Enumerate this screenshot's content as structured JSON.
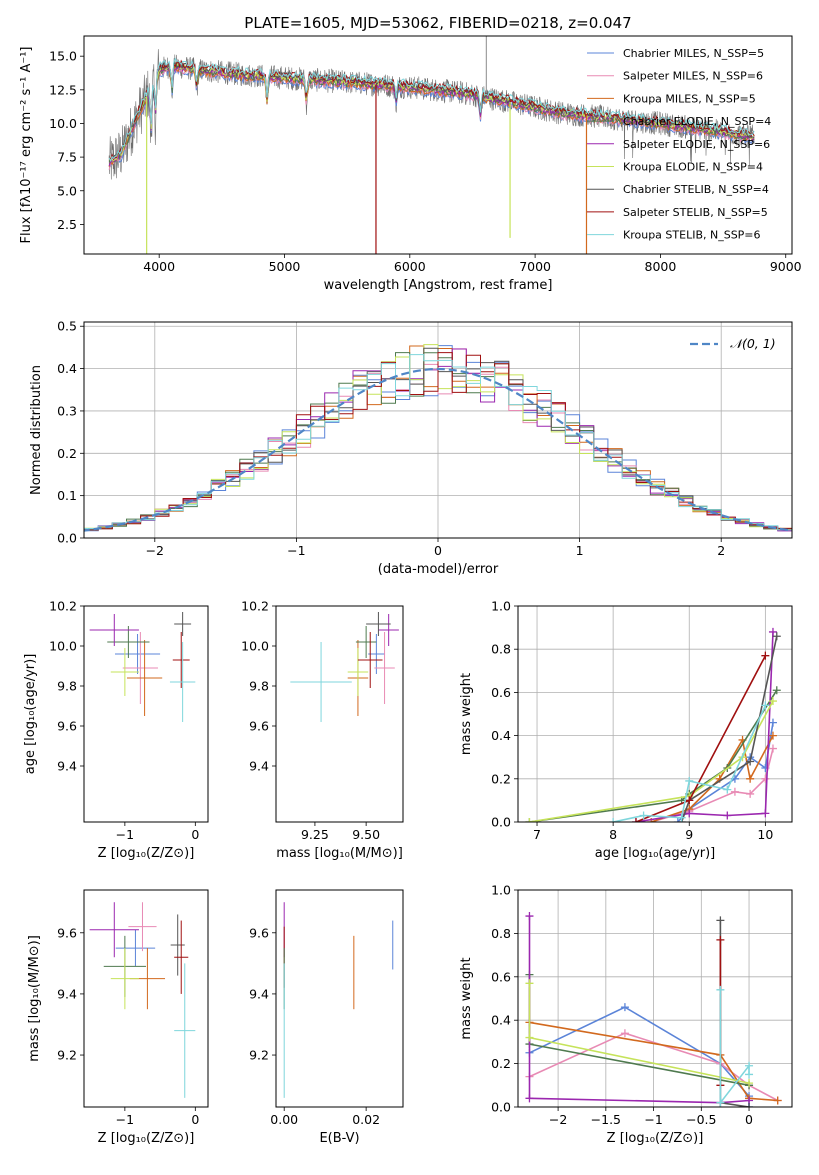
{
  "colors": {
    "chabrier_miles": "#5b84d8",
    "salpeter_miles": "#e88ab4",
    "kroupa_miles": "#d2691e",
    "chabrier_elodie": "#4f7a4f",
    "salpeter_elodie": "#9b27af",
    "kroupa_elodie": "#c6e35a",
    "chabrier_stelib": "#555555",
    "salpeter_stelib": "#a01010",
    "kroupa_stelib": "#7fd6dc",
    "normal_curve": "#4f86c6",
    "grid": "#b0b0b0"
  },
  "chart_data": [
    {
      "id": "spectrum",
      "type": "line",
      "title": "PLATE=1605, MJD=53062, FIBERID=0218, z=0.047",
      "xlabel": "wavelength [Angstrom, rest frame]",
      "ylabel": "Flux [fλ10⁻¹⁷ erg cm⁻² s⁻¹ A⁻¹]",
      "xlim": [
        3400,
        9050
      ],
      "ylim": [
        0.3,
        16.5
      ],
      "xticks": [
        4000,
        5000,
        6000,
        7000,
        8000,
        9000
      ],
      "yticks": [
        2.5,
        5.0,
        7.5,
        10.0,
        12.5,
        15.0
      ],
      "grid": false,
      "legend_position": "top-right",
      "legend": [
        "Chabrier MILES, N_SSP=5",
        "Salpeter MILES, N_SSP=6",
        "Kroupa MILES, N_SSP=5",
        "Chabrier ELODIE, N_SSP=4",
        "Salpeter ELODIE, N_SSP=6",
        "Kroupa ELODIE, N_SSP=4",
        "Chabrier STELIB, N_SSP=4",
        "Salpeter STELIB, N_SSP=5",
        "Kroupa STELIB, N_SSP=6"
      ],
      "continuum": {
        "x": [
          3600,
          3700,
          3800,
          3950,
          4000,
          4100,
          4300,
          4500,
          4700,
          5000,
          5300,
          5600,
          6000,
          6400,
          6800,
          7200,
          7500,
          8000,
          8400,
          8750
        ],
        "y": [
          7.0,
          7.8,
          10.0,
          13.0,
          14.0,
          14.3,
          14.0,
          13.8,
          13.6,
          13.4,
          13.2,
          13.0,
          12.7,
          12.3,
          11.6,
          10.8,
          10.5,
          10.0,
          9.5,
          9.0
        ]
      },
      "model_dips": [
        {
          "series": "Salpeter STELIB",
          "x": 5730,
          "y_min": 0.3
        },
        {
          "series": "Kroupa MILES",
          "x": 7410,
          "y_min": 0.3
        },
        {
          "series": "Kroupa ELODIE",
          "x": 3900,
          "y_min": 0.3
        },
        {
          "series": "Kroupa ELODIE",
          "x": 6800,
          "y_min": 1.5
        }
      ]
    },
    {
      "id": "residuals",
      "type": "histogram",
      "xlabel": "(data-model)/error",
      "ylabel": "Normed distribution",
      "xlim": [
        -2.5,
        2.5
      ],
      "ylim": [
        0,
        0.51
      ],
      "xticks": [
        -2,
        -1,
        0,
        1,
        2
      ],
      "yticks": [
        0.0,
        0.1,
        0.2,
        0.3,
        0.4,
        0.5
      ],
      "grid": true,
      "legend_position": "top-right",
      "legend": [
        "𝒩(0, 1)"
      ],
      "bin_width": 0.1,
      "curve": "normal pdf, mean 0, sd 1"
    },
    {
      "id": "age-vs-Z",
      "type": "scatter",
      "xlabel": "Z [log₁₀(Z/Z⊙)]",
      "ylabel": "age  [log₁₀(age/yr)]",
      "xlim": [
        -1.58,
        0.18
      ],
      "ylim": [
        9.12,
        10.2
      ],
      "xticks": [
        -1,
        0
      ],
      "yticks": [
        9.4,
        9.6,
        9.8,
        10.0,
        10.2
      ],
      "grid": false,
      "points": [
        {
          "series": "Chabrier MILES",
          "x": -0.82,
          "y": 9.96,
          "xerr": 0.32,
          "yerr": 0.1
        },
        {
          "series": "Salpeter MILES",
          "x": -0.78,
          "y": 9.89,
          "xerr": 0.25,
          "yerr": 0.18
        },
        {
          "series": "Kroupa MILES",
          "x": -0.72,
          "y": 9.84,
          "xerr": 0.25,
          "yerr": 0.19
        },
        {
          "series": "Chabrier ELODIE",
          "x": -0.95,
          "y": 10.02,
          "xerr": 0.3,
          "yerr": 0.08
        },
        {
          "series": "Salpeter ELODIE",
          "x": -1.15,
          "y": 10.08,
          "xerr": 0.35,
          "yerr": 0.08
        },
        {
          "series": "Kroupa ELODIE",
          "x": -1.0,
          "y": 9.87,
          "xerr": 0.2,
          "yerr": 0.12
        },
        {
          "series": "Chabrier STELIB",
          "x": -0.18,
          "y": 10.11,
          "xerr": 0.12,
          "yerr": 0.06
        },
        {
          "series": "Salpeter STELIB",
          "x": -0.2,
          "y": 9.93,
          "xerr": 0.12,
          "yerr": 0.14
        },
        {
          "series": "Kroupa STELIB",
          "x": -0.18,
          "y": 9.82,
          "xerr": 0.18,
          "yerr": 0.2
        }
      ]
    },
    {
      "id": "age-vs-mass",
      "type": "scatter",
      "xlabel": "mass [log₁₀(M/M⊙)]",
      "xlim": [
        9.06,
        9.68
      ],
      "ylim": [
        9.12,
        10.2
      ],
      "xticks": [
        9.25,
        9.5
      ],
      "xticklabels": [
        "9.25",
        "9.50"
      ],
      "yticks": [
        9.4,
        9.6,
        9.8,
        10.0,
        10.2
      ],
      "grid": false,
      "points": [
        {
          "series": "Chabrier MILES",
          "x": 9.55,
          "y": 9.96,
          "xerr": 0.04,
          "yerr": 0.1
        },
        {
          "series": "Salpeter MILES",
          "x": 9.59,
          "y": 9.89,
          "xerr": 0.05,
          "yerr": 0.18
        },
        {
          "series": "Kroupa MILES",
          "x": 9.46,
          "y": 9.84,
          "xerr": 0.05,
          "yerr": 0.19
        },
        {
          "series": "Chabrier ELODIE",
          "x": 9.5,
          "y": 10.02,
          "xerr": 0.05,
          "yerr": 0.08
        },
        {
          "series": "Salpeter ELODIE",
          "x": 9.61,
          "y": 10.08,
          "xerr": 0.05,
          "yerr": 0.08
        },
        {
          "series": "Kroupa ELODIE",
          "x": 9.46,
          "y": 9.87,
          "xerr": 0.05,
          "yerr": 0.12
        },
        {
          "series": "Chabrier STELIB",
          "x": 9.56,
          "y": 10.11,
          "xerr": 0.06,
          "yerr": 0.06
        },
        {
          "series": "Salpeter STELIB",
          "x": 9.52,
          "y": 9.93,
          "xerr": 0.06,
          "yerr": 0.14
        },
        {
          "series": "Kroupa STELIB",
          "x": 9.28,
          "y": 9.82,
          "xerr": 0.15,
          "yerr": 0.2
        }
      ]
    },
    {
      "id": "massweight-vs-age",
      "type": "line",
      "xlabel": "age  [log₁₀(age/yr)]",
      "ylabel": "mass weight",
      "xlim": [
        6.75,
        10.35
      ],
      "ylim": [
        0,
        1.0
      ],
      "xticks": [
        7,
        8,
        9,
        10
      ],
      "yticks": [
        0.0,
        0.2,
        0.4,
        0.6,
        0.8,
        1.0
      ],
      "grid": true,
      "series": [
        {
          "series": "Chabrier MILES",
          "x": [
            8.85,
            9.0,
            9.6,
            9.8,
            10.0,
            10.1
          ],
          "y": [
            0.0,
            0.06,
            0.2,
            0.3,
            0.25,
            0.46
          ]
        },
        {
          "series": "Salpeter MILES",
          "x": [
            8.5,
            9.0,
            9.6,
            9.8,
            10.0,
            10.1
          ],
          "y": [
            0.0,
            0.05,
            0.14,
            0.13,
            0.2,
            0.34
          ]
        },
        {
          "series": "Kroupa MILES",
          "x": [
            8.5,
            9.0,
            9.4,
            9.7,
            9.8,
            10.1
          ],
          "y": [
            0.0,
            0.06,
            0.2,
            0.38,
            0.2,
            0.4
          ]
        },
        {
          "series": "Chabrier ELODIE",
          "x": [
            6.9,
            8.9,
            9.0,
            9.5,
            10.15
          ],
          "y": [
            0.0,
            0.1,
            0.13,
            0.25,
            0.61
          ]
        },
        {
          "series": "Salpeter ELODIE",
          "x": [
            8.3,
            9.0,
            9.5,
            10.0,
            10.1
          ],
          "y": [
            0.0,
            0.04,
            0.03,
            0.04,
            0.88
          ]
        },
        {
          "series": "Kroupa ELODIE",
          "x": [
            6.9,
            9.0,
            9.7,
            10.1
          ],
          "y": [
            0.0,
            0.12,
            0.3,
            0.56
          ]
        },
        {
          "series": "Chabrier STELIB",
          "x": [
            8.9,
            9.0,
            9.8,
            10.15
          ],
          "y": [
            0.0,
            0.1,
            0.28,
            0.86
          ]
        },
        {
          "series": "Salpeter STELIB",
          "x": [
            8.3,
            9.0,
            10.0
          ],
          "y": [
            0.0,
            0.1,
            0.77
          ]
        },
        {
          "series": "Kroupa STELIB",
          "x": [
            8.0,
            8.4,
            8.9,
            9.0,
            9.5,
            10.0
          ],
          "y": [
            0.0,
            0.03,
            0.02,
            0.19,
            0.15,
            0.54
          ]
        }
      ]
    },
    {
      "id": "mass-vs-Z",
      "type": "scatter",
      "xlabel": "Z [log₁₀(Z/Z⊙)]",
      "ylabel": "mass [log₁₀(M/M⊙)]",
      "xlim": [
        -1.58,
        0.18
      ],
      "ylim": [
        9.03,
        9.74
      ],
      "xticks": [
        -1,
        0
      ],
      "yticks": [
        9.2,
        9.4,
        9.6
      ],
      "grid": false,
      "points": [
        {
          "series": "Chabrier MILES",
          "x": -0.85,
          "y": 9.55,
          "xerr": 0.28,
          "yerr": 0.06
        },
        {
          "series": "Salpeter MILES",
          "x": -0.75,
          "y": 9.62,
          "xerr": 0.2,
          "yerr": 0.08
        },
        {
          "series": "Kroupa MILES",
          "x": -0.68,
          "y": 9.45,
          "xerr": 0.25,
          "yerr": 0.1
        },
        {
          "series": "Chabrier ELODIE",
          "x": -1.0,
          "y": 9.49,
          "xerr": 0.3,
          "yerr": 0.1
        },
        {
          "series": "Salpeter ELODIE",
          "x": -1.15,
          "y": 9.61,
          "xerr": 0.35,
          "yerr": 0.09
        },
        {
          "series": "Kroupa ELODIE",
          "x": -1.0,
          "y": 9.45,
          "xerr": 0.2,
          "yerr": 0.1
        },
        {
          "series": "Chabrier STELIB",
          "x": -0.25,
          "y": 9.56,
          "xerr": 0.1,
          "yerr": 0.1
        },
        {
          "series": "Salpeter STELIB",
          "x": -0.2,
          "y": 9.52,
          "xerr": 0.1,
          "yerr": 0.12
        },
        {
          "series": "Kroupa STELIB",
          "x": -0.15,
          "y": 9.28,
          "xerr": 0.15,
          "yerr": 0.22
        }
      ]
    },
    {
      "id": "mass-vs-ebv",
      "type": "scatter",
      "xlabel": "E(B-V)",
      "xlim": [
        -0.002,
        0.029
      ],
      "ylim": [
        9.03,
        9.74
      ],
      "xticks": [
        0.0,
        0.02
      ],
      "xticklabels": [
        "0.00",
        "0.02"
      ],
      "yticks": [
        9.2,
        9.4,
        9.6
      ],
      "grid": false,
      "points": [
        {
          "series": "Chabrier MILES",
          "x": 0.0265,
          "y": 9.56,
          "xerr": 0,
          "yerr": 0.08
        },
        {
          "series": "Kroupa MILES",
          "x": 0.017,
          "y": 9.47,
          "xerr": 0,
          "yerr": 0.12
        },
        {
          "series": "Salpeter ELODIE",
          "x": 0.0,
          "y": 9.61,
          "xerr": 0,
          "yerr": 0.09
        },
        {
          "series": "Salpeter STELIB",
          "x": 0.0,
          "y": 9.52,
          "xerr": 0,
          "yerr": 0.1
        },
        {
          "series": "Chabrier ELODIE",
          "x": 0.0,
          "y": 9.45,
          "xerr": 0,
          "yerr": 0.1
        },
        {
          "series": "Kroupa STELIB",
          "x": 0.0,
          "y": 9.28,
          "xerr": 0,
          "yerr": 0.22
        }
      ]
    },
    {
      "id": "massweight-vs-Z",
      "type": "line",
      "xlabel": "Z [log₁₀(Z/Z⊙)]",
      "ylabel": "mass weight",
      "xlim": [
        -2.42,
        0.45
      ],
      "ylim": [
        0,
        1.0
      ],
      "xticks": [
        -2.0,
        -1.5,
        -1.0,
        -0.5,
        0.0
      ],
      "yticks": [
        0.0,
        0.2,
        0.4,
        0.6,
        0.8,
        1.0
      ],
      "grid": true,
      "series": [
        {
          "series": "Chabrier MILES",
          "x": [
            -2.3,
            -1.3,
            -0.3,
            0.0,
            0.0
          ],
          "y": [
            0.25,
            0.46,
            0.2,
            0.05,
            0.0
          ]
        },
        {
          "series": "Salpeter MILES",
          "x": [
            -2.3,
            -1.3,
            -0.3,
            0.0,
            0.3
          ],
          "y": [
            0.14,
            0.34,
            0.2,
            0.1,
            0.03
          ]
        },
        {
          "series": "Kroupa MILES",
          "x": [
            -2.3,
            -0.3,
            0.0,
            0.3
          ],
          "y": [
            0.39,
            0.24,
            0.04,
            0.03
          ]
        },
        {
          "series": "Chabrier ELODIE",
          "x": [
            -2.3,
            -2.3,
            0.0
          ],
          "y": [
            0.61,
            0.29,
            0.1
          ]
        },
        {
          "series": "Salpeter ELODIE",
          "x": [
            -2.3,
            -2.3,
            -0.3,
            0.0
          ],
          "y": [
            0.88,
            0.04,
            0.02,
            0.03
          ]
        },
        {
          "series": "Kroupa ELODIE",
          "x": [
            -2.3,
            -2.3,
            0.0
          ],
          "y": [
            0.57,
            0.32,
            0.11
          ]
        },
        {
          "series": "Chabrier STELIB",
          "x": [
            -0.3,
            -0.3,
            0.0
          ],
          "y": [
            0.86,
            0.02,
            0.0
          ]
        },
        {
          "series": "Salpeter STELIB",
          "x": [
            -0.3,
            -0.3
          ],
          "y": [
            0.77,
            0.1
          ]
        },
        {
          "series": "Kroupa STELIB",
          "x": [
            -0.3,
            -0.3,
            0.0,
            0.0
          ],
          "y": [
            0.54,
            0.02,
            0.19,
            0.15
          ]
        }
      ]
    }
  ]
}
